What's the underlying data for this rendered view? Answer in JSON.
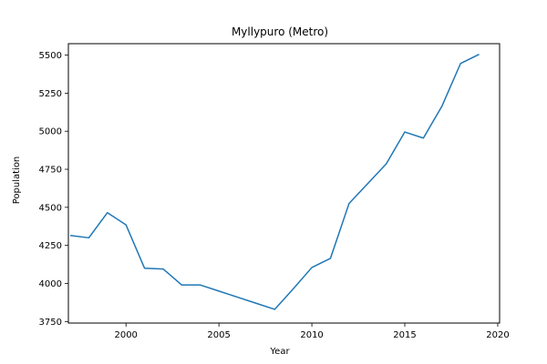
{
  "chart_data": {
    "type": "line",
    "title": "Myllypuro (Metro)",
    "xlabel": "Year",
    "ylabel": "Population",
    "xlim": [
      1996.9,
      2020.1
    ],
    "ylim": [
      3740,
      5575
    ],
    "x_ticks": [
      2000,
      2005,
      2010,
      2015,
      2020
    ],
    "y_ticks": [
      3750,
      4000,
      4250,
      4500,
      4750,
      5000,
      5250,
      5500
    ],
    "grid": false,
    "series": [
      {
        "color": "#1f77b4",
        "x": [
          1997,
          1998,
          1999,
          2000,
          2001,
          2002,
          2003,
          2004,
          2005,
          2006,
          2007,
          2008,
          2009,
          2010,
          2011,
          2012,
          2013,
          2014,
          2015,
          2016,
          2017,
          2018,
          2019
        ],
        "y": [
          4315,
          4300,
          4465,
          4385,
          4100,
          4095,
          3990,
          3990,
          3950,
          3910,
          3870,
          3830,
          3965,
          4105,
          4165,
          4525,
          4655,
          4785,
          4995,
          4955,
          5165,
          5445,
          5505
        ]
      }
    ]
  }
}
